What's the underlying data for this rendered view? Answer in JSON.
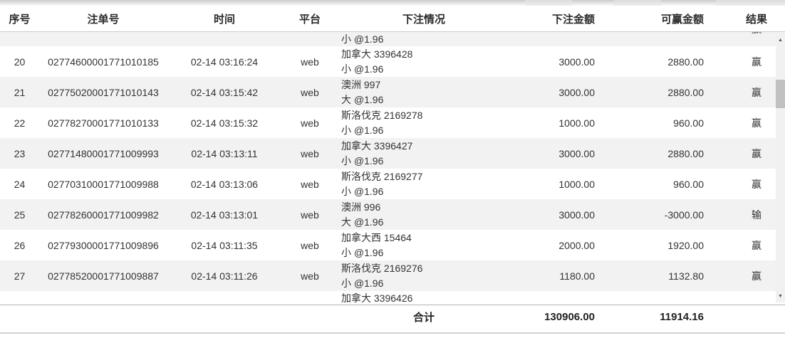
{
  "table": {
    "header": {
      "columns": [
        "序号",
        "注单号",
        "时间",
        "平台",
        "下注情况",
        "下注金额",
        "可赢金额",
        "结果"
      ]
    },
    "partial_top_row": {
      "detail_line2": "小 @1.96",
      "result": "赢"
    },
    "rows": [
      {
        "seq": "20",
        "order_no": "02774600001771010185",
        "time": "02-14 03:16:24",
        "platform": "web",
        "detail_line1": "加拿大 3396428",
        "detail_line2": "小 @1.96",
        "bet_amount": "3000.00",
        "win_amount": "2880.00",
        "result": "赢"
      },
      {
        "seq": "21",
        "order_no": "02775020001771010143",
        "time": "02-14 03:15:42",
        "platform": "web",
        "detail_line1": "澳洲 997",
        "detail_line2": "大 @1.96",
        "bet_amount": "3000.00",
        "win_amount": "2880.00",
        "result": "赢"
      },
      {
        "seq": "22",
        "order_no": "02778270001771010133",
        "time": "02-14 03:15:32",
        "platform": "web",
        "detail_line1": "斯洛伐克 2169278",
        "detail_line2": "小 @1.96",
        "bet_amount": "1000.00",
        "win_amount": "960.00",
        "result": "赢"
      },
      {
        "seq": "23",
        "order_no": "02771480001771009993",
        "time": "02-14 03:13:11",
        "platform": "web",
        "detail_line1": "加拿大 3396427",
        "detail_line2": "小 @1.96",
        "bet_amount": "3000.00",
        "win_amount": "2880.00",
        "result": "赢"
      },
      {
        "seq": "24",
        "order_no": "02770310001771009988",
        "time": "02-14 03:13:06",
        "platform": "web",
        "detail_line1": "斯洛伐克 2169277",
        "detail_line2": "小 @1.96",
        "bet_amount": "1000.00",
        "win_amount": "960.00",
        "result": "赢"
      },
      {
        "seq": "25",
        "order_no": "02778260001771009982",
        "time": "02-14 03:13:01",
        "platform": "web",
        "detail_line1": "澳洲 996",
        "detail_line2": "大 @1.96",
        "bet_amount": "3000.00",
        "win_amount": "-3000.00",
        "result": "输"
      },
      {
        "seq": "26",
        "order_no": "02779300001771009896",
        "time": "02-14 03:11:35",
        "platform": "web",
        "detail_line1": "加拿大西 15464",
        "detail_line2": "小 @1.96",
        "bet_amount": "2000.00",
        "win_amount": "1920.00",
        "result": "赢"
      },
      {
        "seq": "27",
        "order_no": "02778520001771009887",
        "time": "02-14 03:11:26",
        "platform": "web",
        "detail_line1": "斯洛伐克 2169276",
        "detail_line2": "小 @1.96",
        "bet_amount": "1180.00",
        "win_amount": "1132.80",
        "result": "赢"
      }
    ],
    "partial_bottom_row": {
      "detail_line1": "加拿大 3396426"
    },
    "footer": {
      "label": "合计",
      "total_bet_amount": "130906.00",
      "total_win_amount": "11914.16"
    }
  },
  "scrollbar": {
    "up_icon": "▲",
    "down_icon": "▼"
  },
  "colors": {
    "row_stripe": "#f2f2f2",
    "header_border": "#cccccc",
    "footer_border": "#b5b5b5",
    "text": "#333333",
    "scroll_track": "#f1f1f1",
    "scroll_thumb": "#c1c1c1"
  }
}
